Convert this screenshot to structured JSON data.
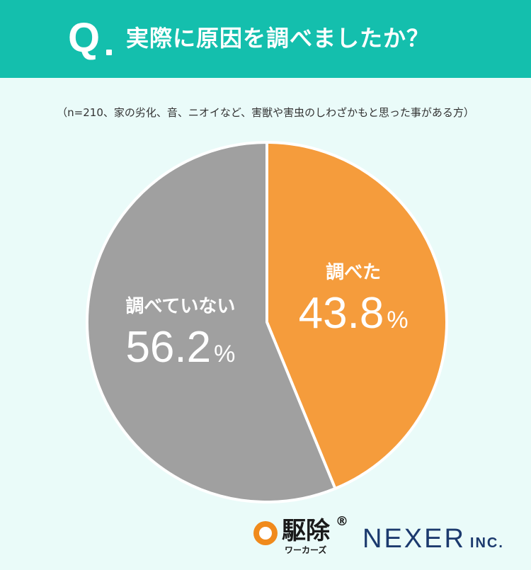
{
  "header": {
    "q_label": "Q",
    "title": "実際に原因を調べましたか？"
  },
  "note": "（n=210、家の劣化、音、ニオイなど、害獣や害虫のしわざかもと思った事がある方）",
  "colors": {
    "header_bg": "#14bfad",
    "background": "#eafbf9",
    "investigated": "#f59c3c",
    "not_investigated": "#a0a0a0",
    "nexer": "#1c3a6e",
    "kujo_orange": "#f08a1c"
  },
  "chart_data": {
    "type": "pie",
    "start": "12 o'clock, clockwise",
    "slices": [
      {
        "label": "調べた",
        "value": 43.8,
        "display": "43.8",
        "unit": "%",
        "color": "#f59c3c"
      },
      {
        "label": "調べていない",
        "value": 56.2,
        "display": "56.2",
        "unit": "%",
        "color": "#a0a0a0"
      }
    ]
  },
  "logos": {
    "kujo_name": "駆除",
    "kujo_reg": "®",
    "kujo_sub": "ワーカーズ",
    "nexer": "NEXER",
    "nexer_inc": "INC."
  }
}
